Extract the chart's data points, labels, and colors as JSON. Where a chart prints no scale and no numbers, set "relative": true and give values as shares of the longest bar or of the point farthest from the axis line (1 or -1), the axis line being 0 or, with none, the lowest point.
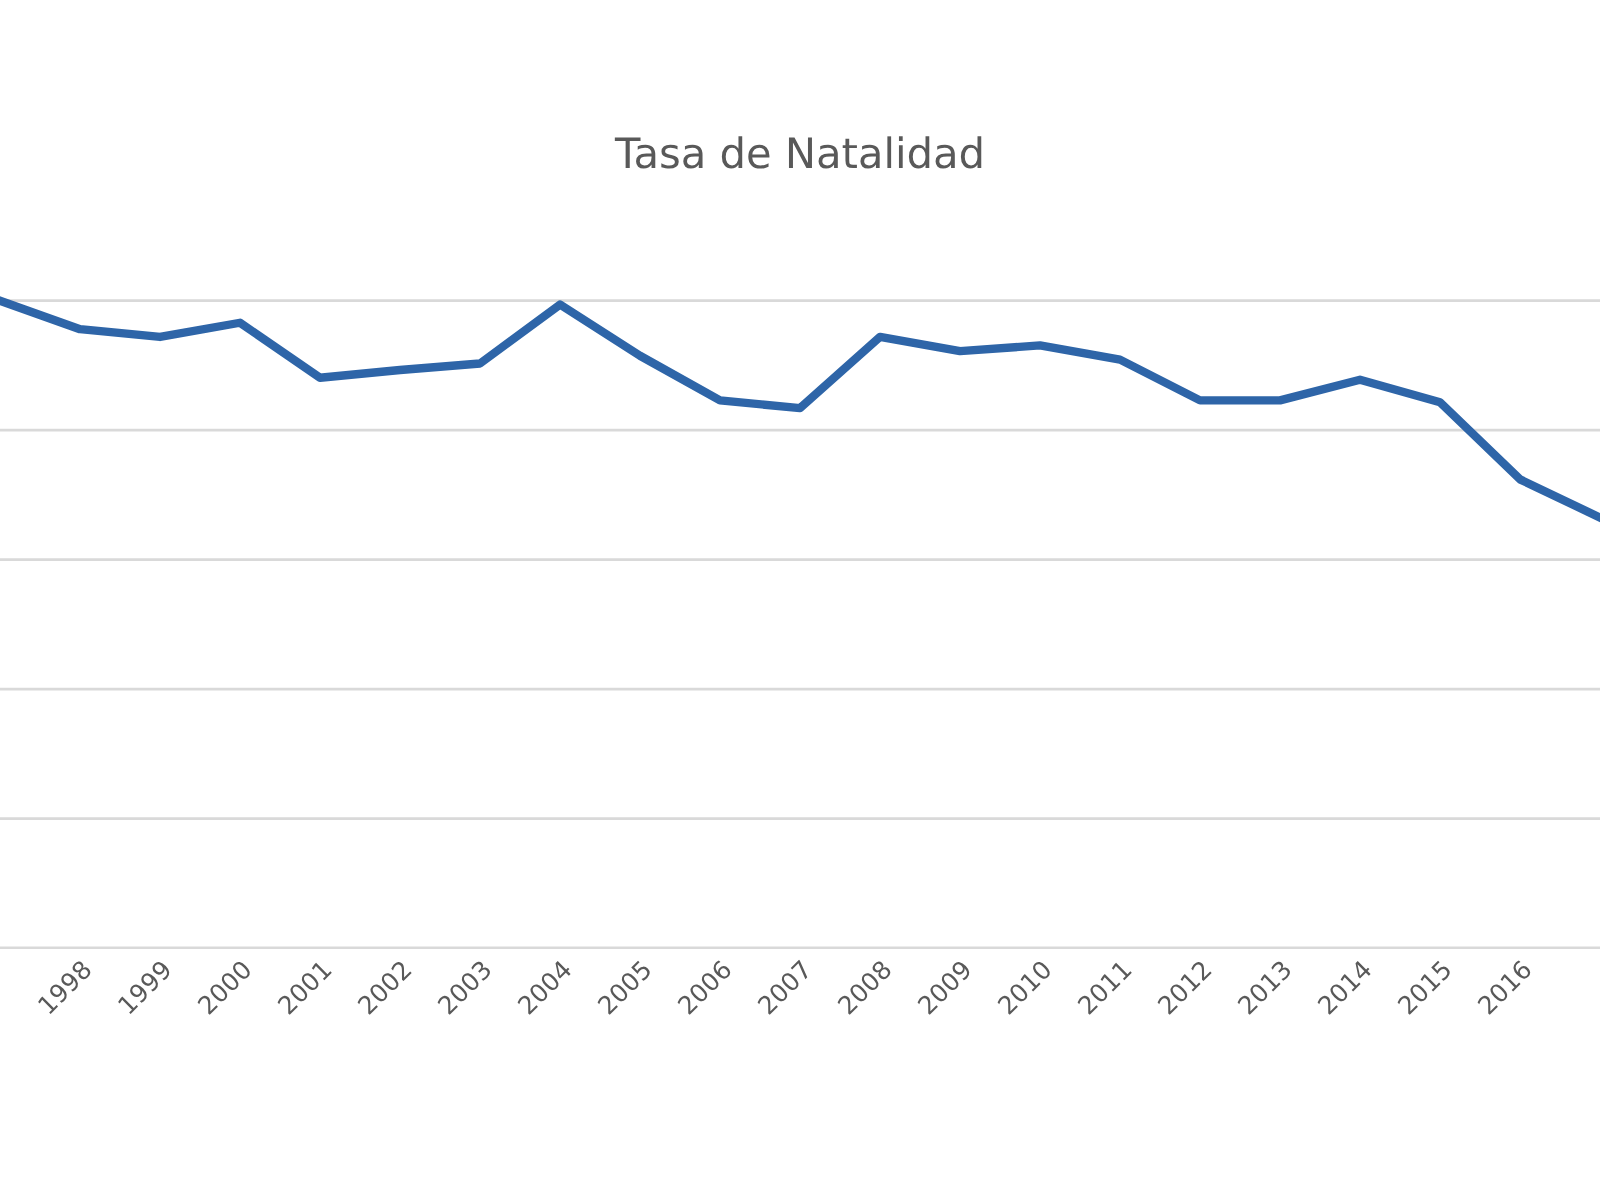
{
  "chart_data": {
    "type": "line",
    "title": "Tasa de Natalidad",
    "relative": true,
    "grid": "y",
    "legend": false,
    "marker": "none",
    "line_style": "solid",
    "categories": [
      null,
      "1998",
      "1999",
      "2000",
      "2001",
      "2002",
      "2003",
      "2004",
      "2005",
      "2006",
      "2007",
      "2008",
      "2009",
      "2010",
      "2011",
      "2012",
      "2013",
      "2014",
      "2015",
      "2016",
      null
    ],
    "series": [
      {
        "color": "#2e65a8",
        "values": [
          1.0,
          0.956,
          0.944,
          0.966,
          0.881,
          0.893,
          0.903,
          0.994,
          0.915,
          0.846,
          0.834,
          0.944,
          0.922,
          0.931,
          0.909,
          0.846,
          0.846,
          0.878,
          0.843,
          0.724,
          0.665
        ]
      }
    ]
  }
}
